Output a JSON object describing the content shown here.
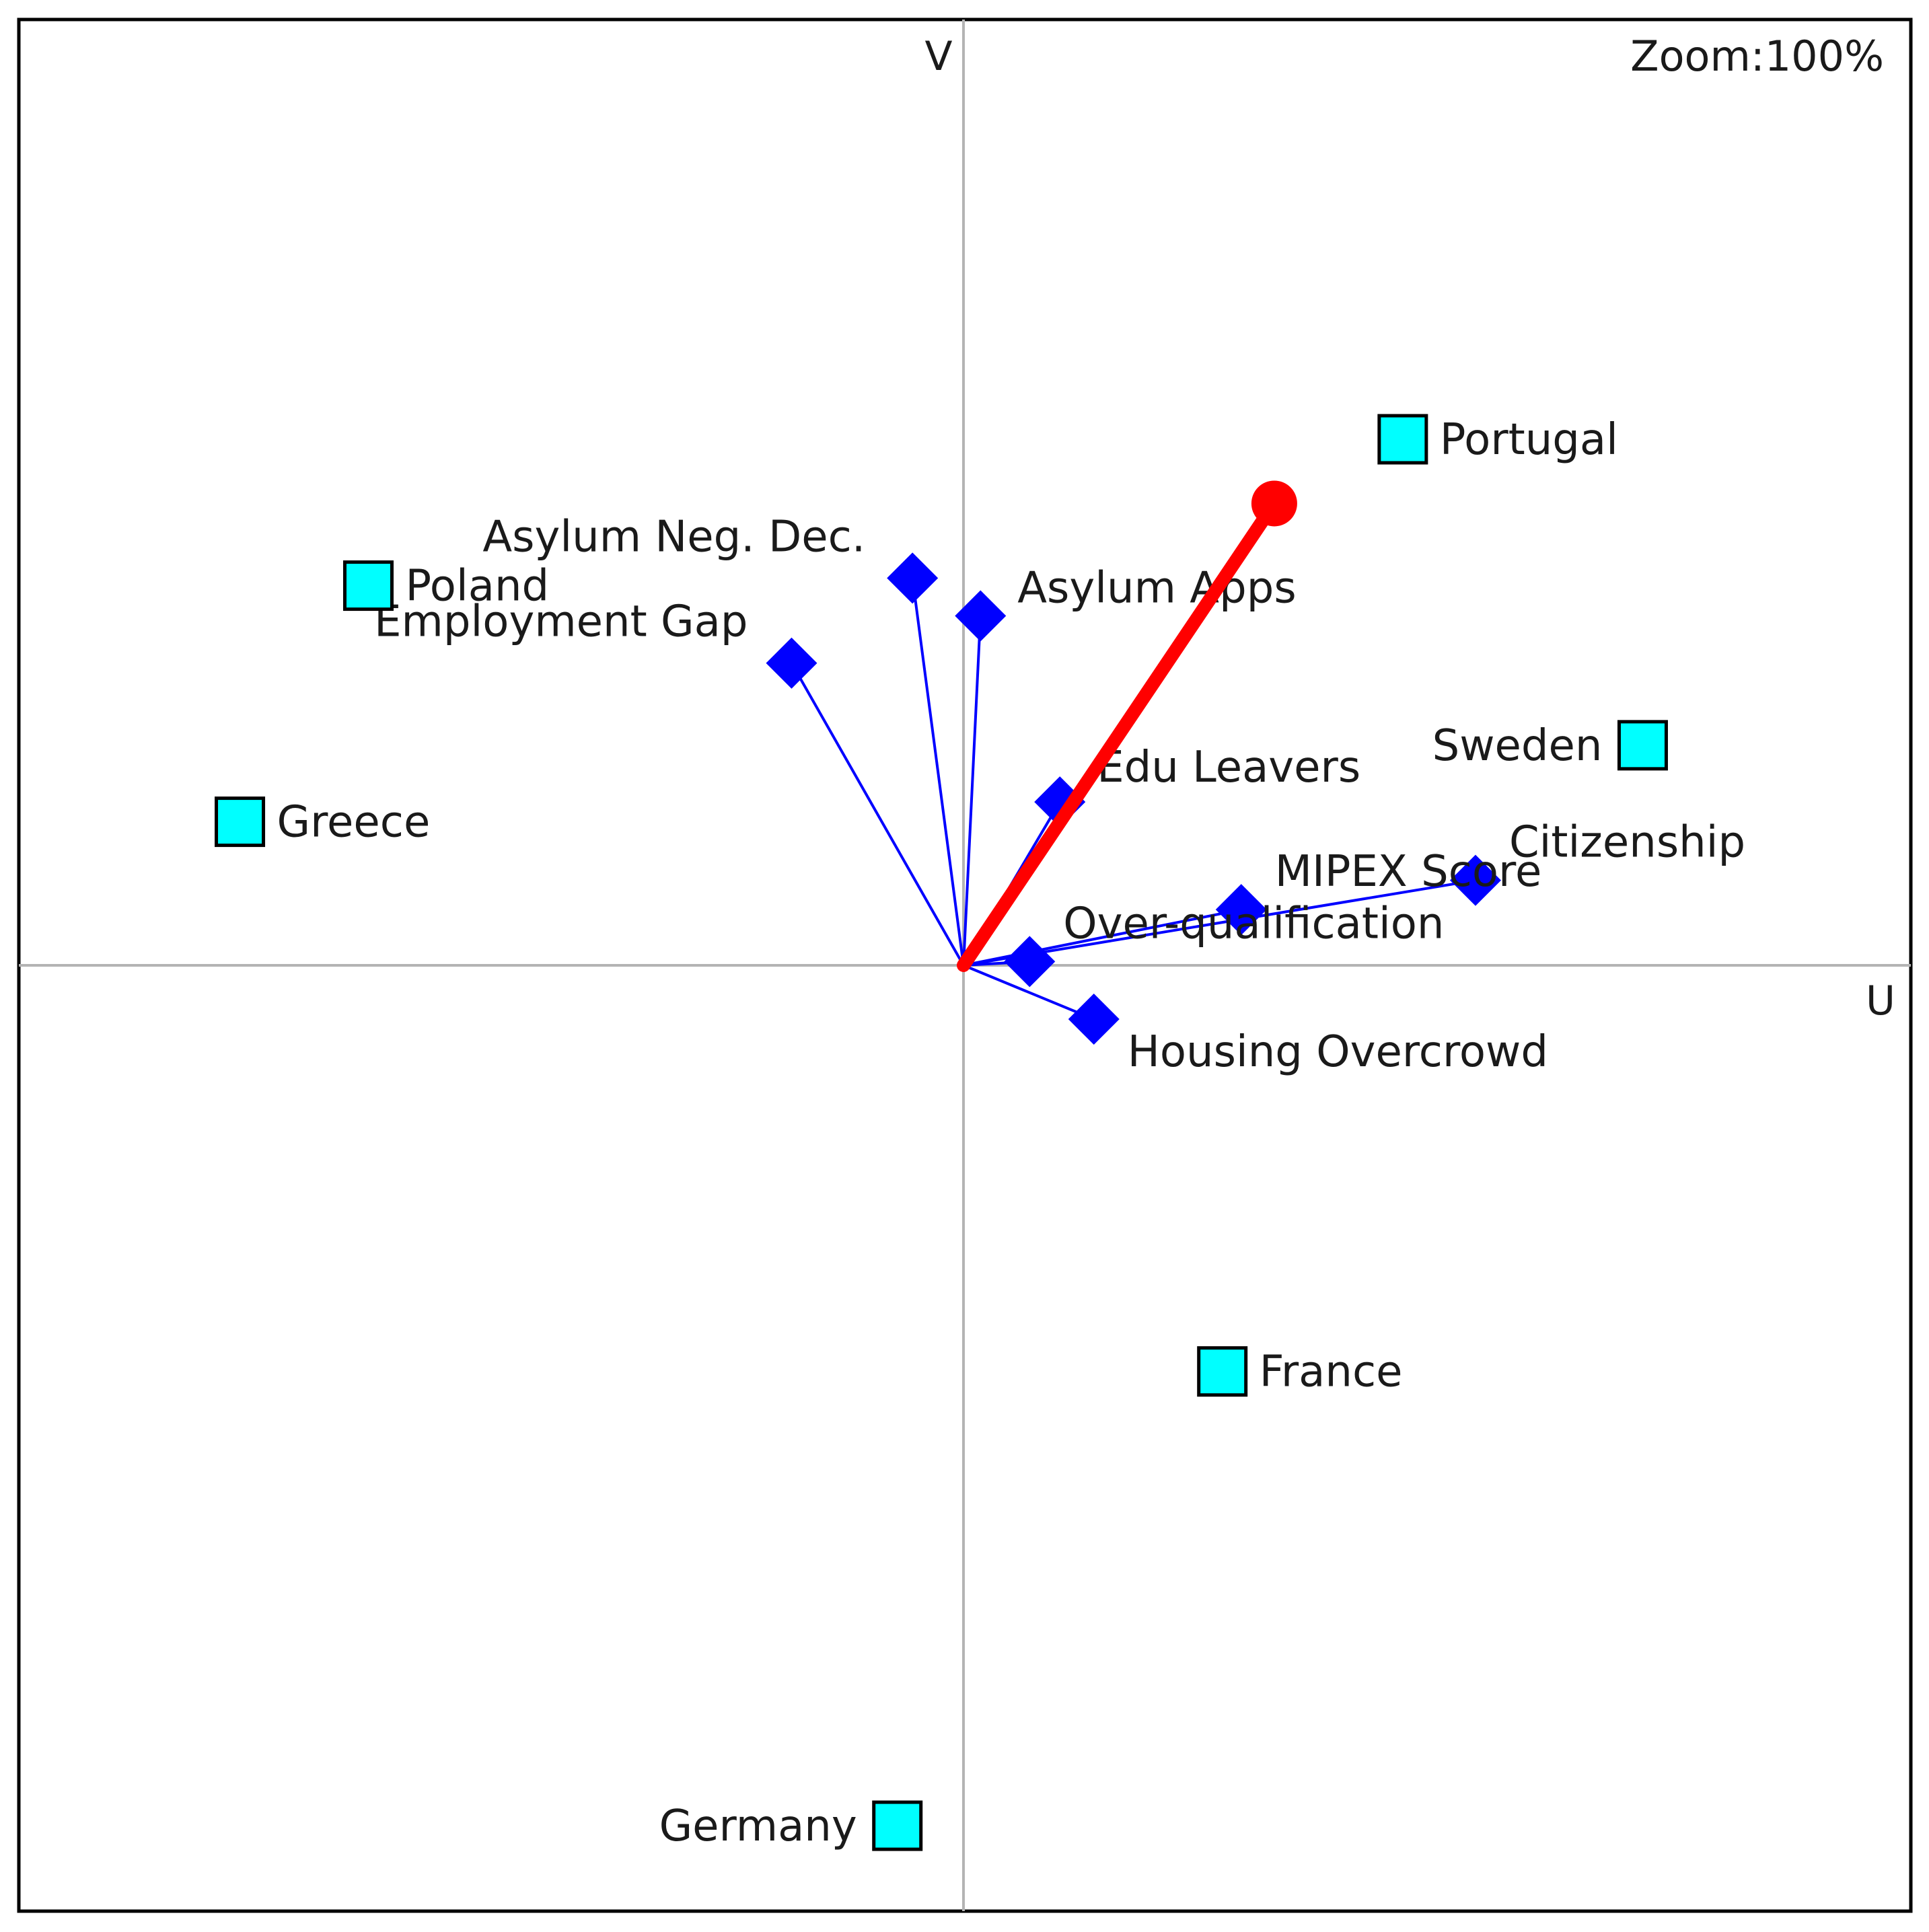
{
  "zoom": {
    "label": "Zoom:",
    "value": "100%"
  },
  "chart_data": {
    "type": "scatter",
    "subtype": "biplot",
    "title": "",
    "xlabel": "U",
    "ylabel": "V",
    "xlim": [
      -1,
      1
    ],
    "ylim": [
      -1,
      1
    ],
    "grid": false,
    "colors": {
      "country_fill": "#00ffff",
      "country_stroke": "#000000",
      "variable": "#0000ff",
      "response": "#ff0000",
      "axis": "#b4b4b4"
    },
    "countries": [
      {
        "name": "Portugal",
        "x": 0.465,
        "y": 0.557
      },
      {
        "name": "Poland",
        "x": -0.63,
        "y": 0.402
      },
      {
        "name": "Sweden",
        "x": 0.719,
        "y": 0.233
      },
      {
        "name": "Greece",
        "x": -0.766,
        "y": 0.152
      },
      {
        "name": "France",
        "x": 0.274,
        "y": -0.43
      },
      {
        "name": "Germany",
        "x": -0.07,
        "y": -0.911
      }
    ],
    "variables": [
      {
        "name": "Asylum Neg. Dec.",
        "x": -0.054,
        "y": 0.41
      },
      {
        "name": "Asylum Apps",
        "x": 0.018,
        "y": 0.37
      },
      {
        "name": "Employment Gap",
        "x": -0.182,
        "y": 0.32
      },
      {
        "name": "Edu Leavers",
        "x": 0.102,
        "y": 0.173
      },
      {
        "name": "Citizenship",
        "x": 0.542,
        "y": 0.09
      },
      {
        "name": "MIPEX Score",
        "x": 0.294,
        "y": 0.059
      },
      {
        "name": "Over-qualification",
        "x": 0.07,
        "y": 0.004
      },
      {
        "name": "Housing Overcrowd",
        "x": 0.138,
        "y": -0.057
      }
    ],
    "response_vector": {
      "x": 0.329,
      "y": 0.489
    }
  }
}
